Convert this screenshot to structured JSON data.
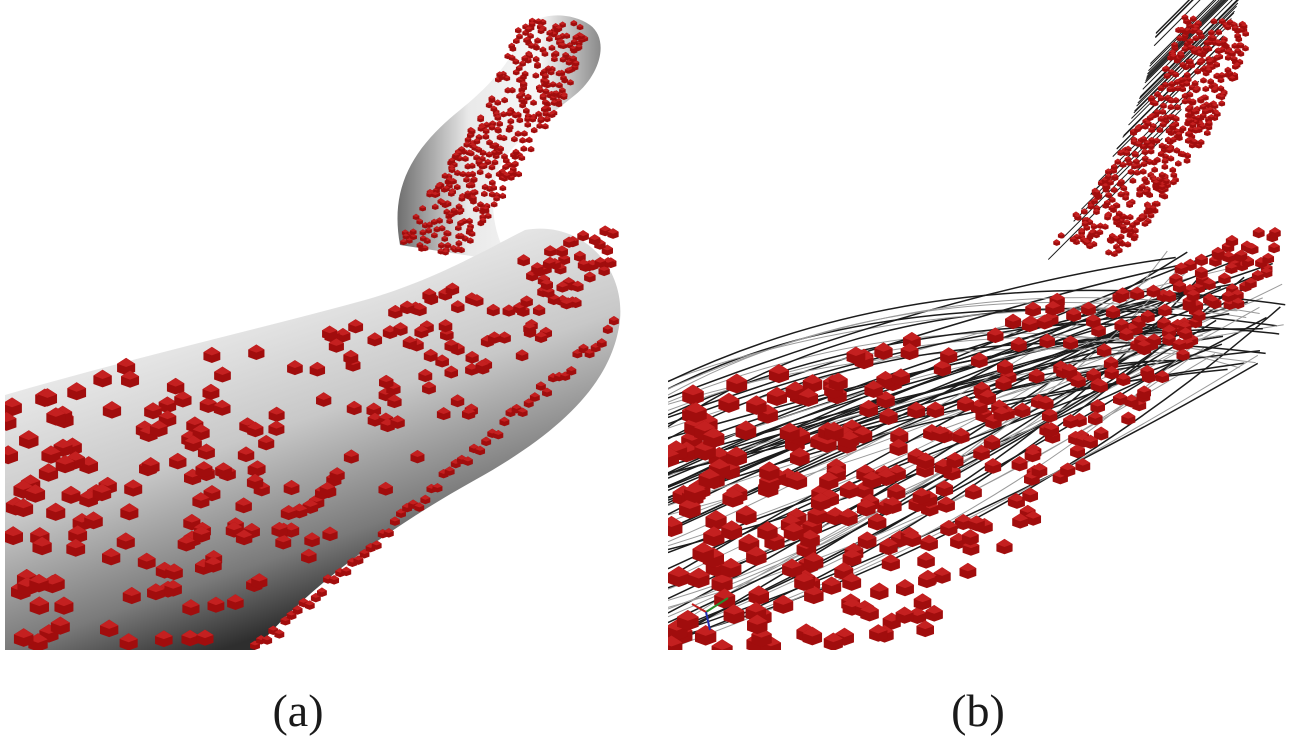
{
  "panels": [
    {
      "id": "a",
      "label": "(a)",
      "render": "shaded-surface"
    },
    {
      "id": "b",
      "label": "(b)",
      "render": "wireframe"
    }
  ],
  "colors": {
    "particle": "#a10d0d",
    "particle_dark": "#5e0505",
    "surface_light": "#f4f4f4",
    "surface_dark": "#3a3a3a",
    "wire": "#1c1c1c",
    "background": "#ffffff"
  },
  "icons": [
    "axis-triad-icon"
  ]
}
